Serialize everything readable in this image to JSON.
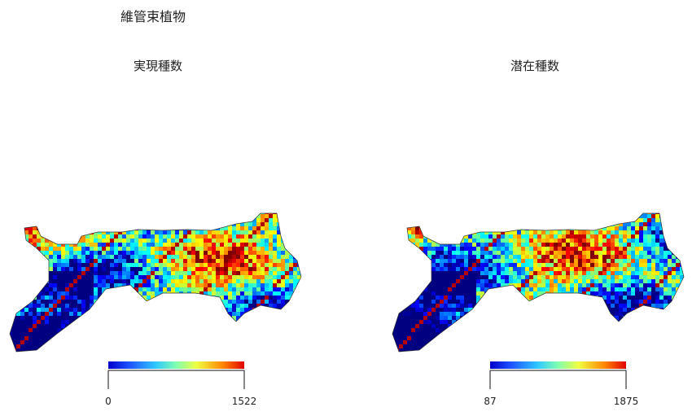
{
  "header": {
    "title": "維管束植物"
  },
  "panels": [
    {
      "title": "実現種数",
      "colorbar": {
        "min": 0,
        "max": 1522
      }
    },
    {
      "title": "潜在種数",
      "colorbar": {
        "min": 87,
        "max": 1875
      }
    }
  ]
}
